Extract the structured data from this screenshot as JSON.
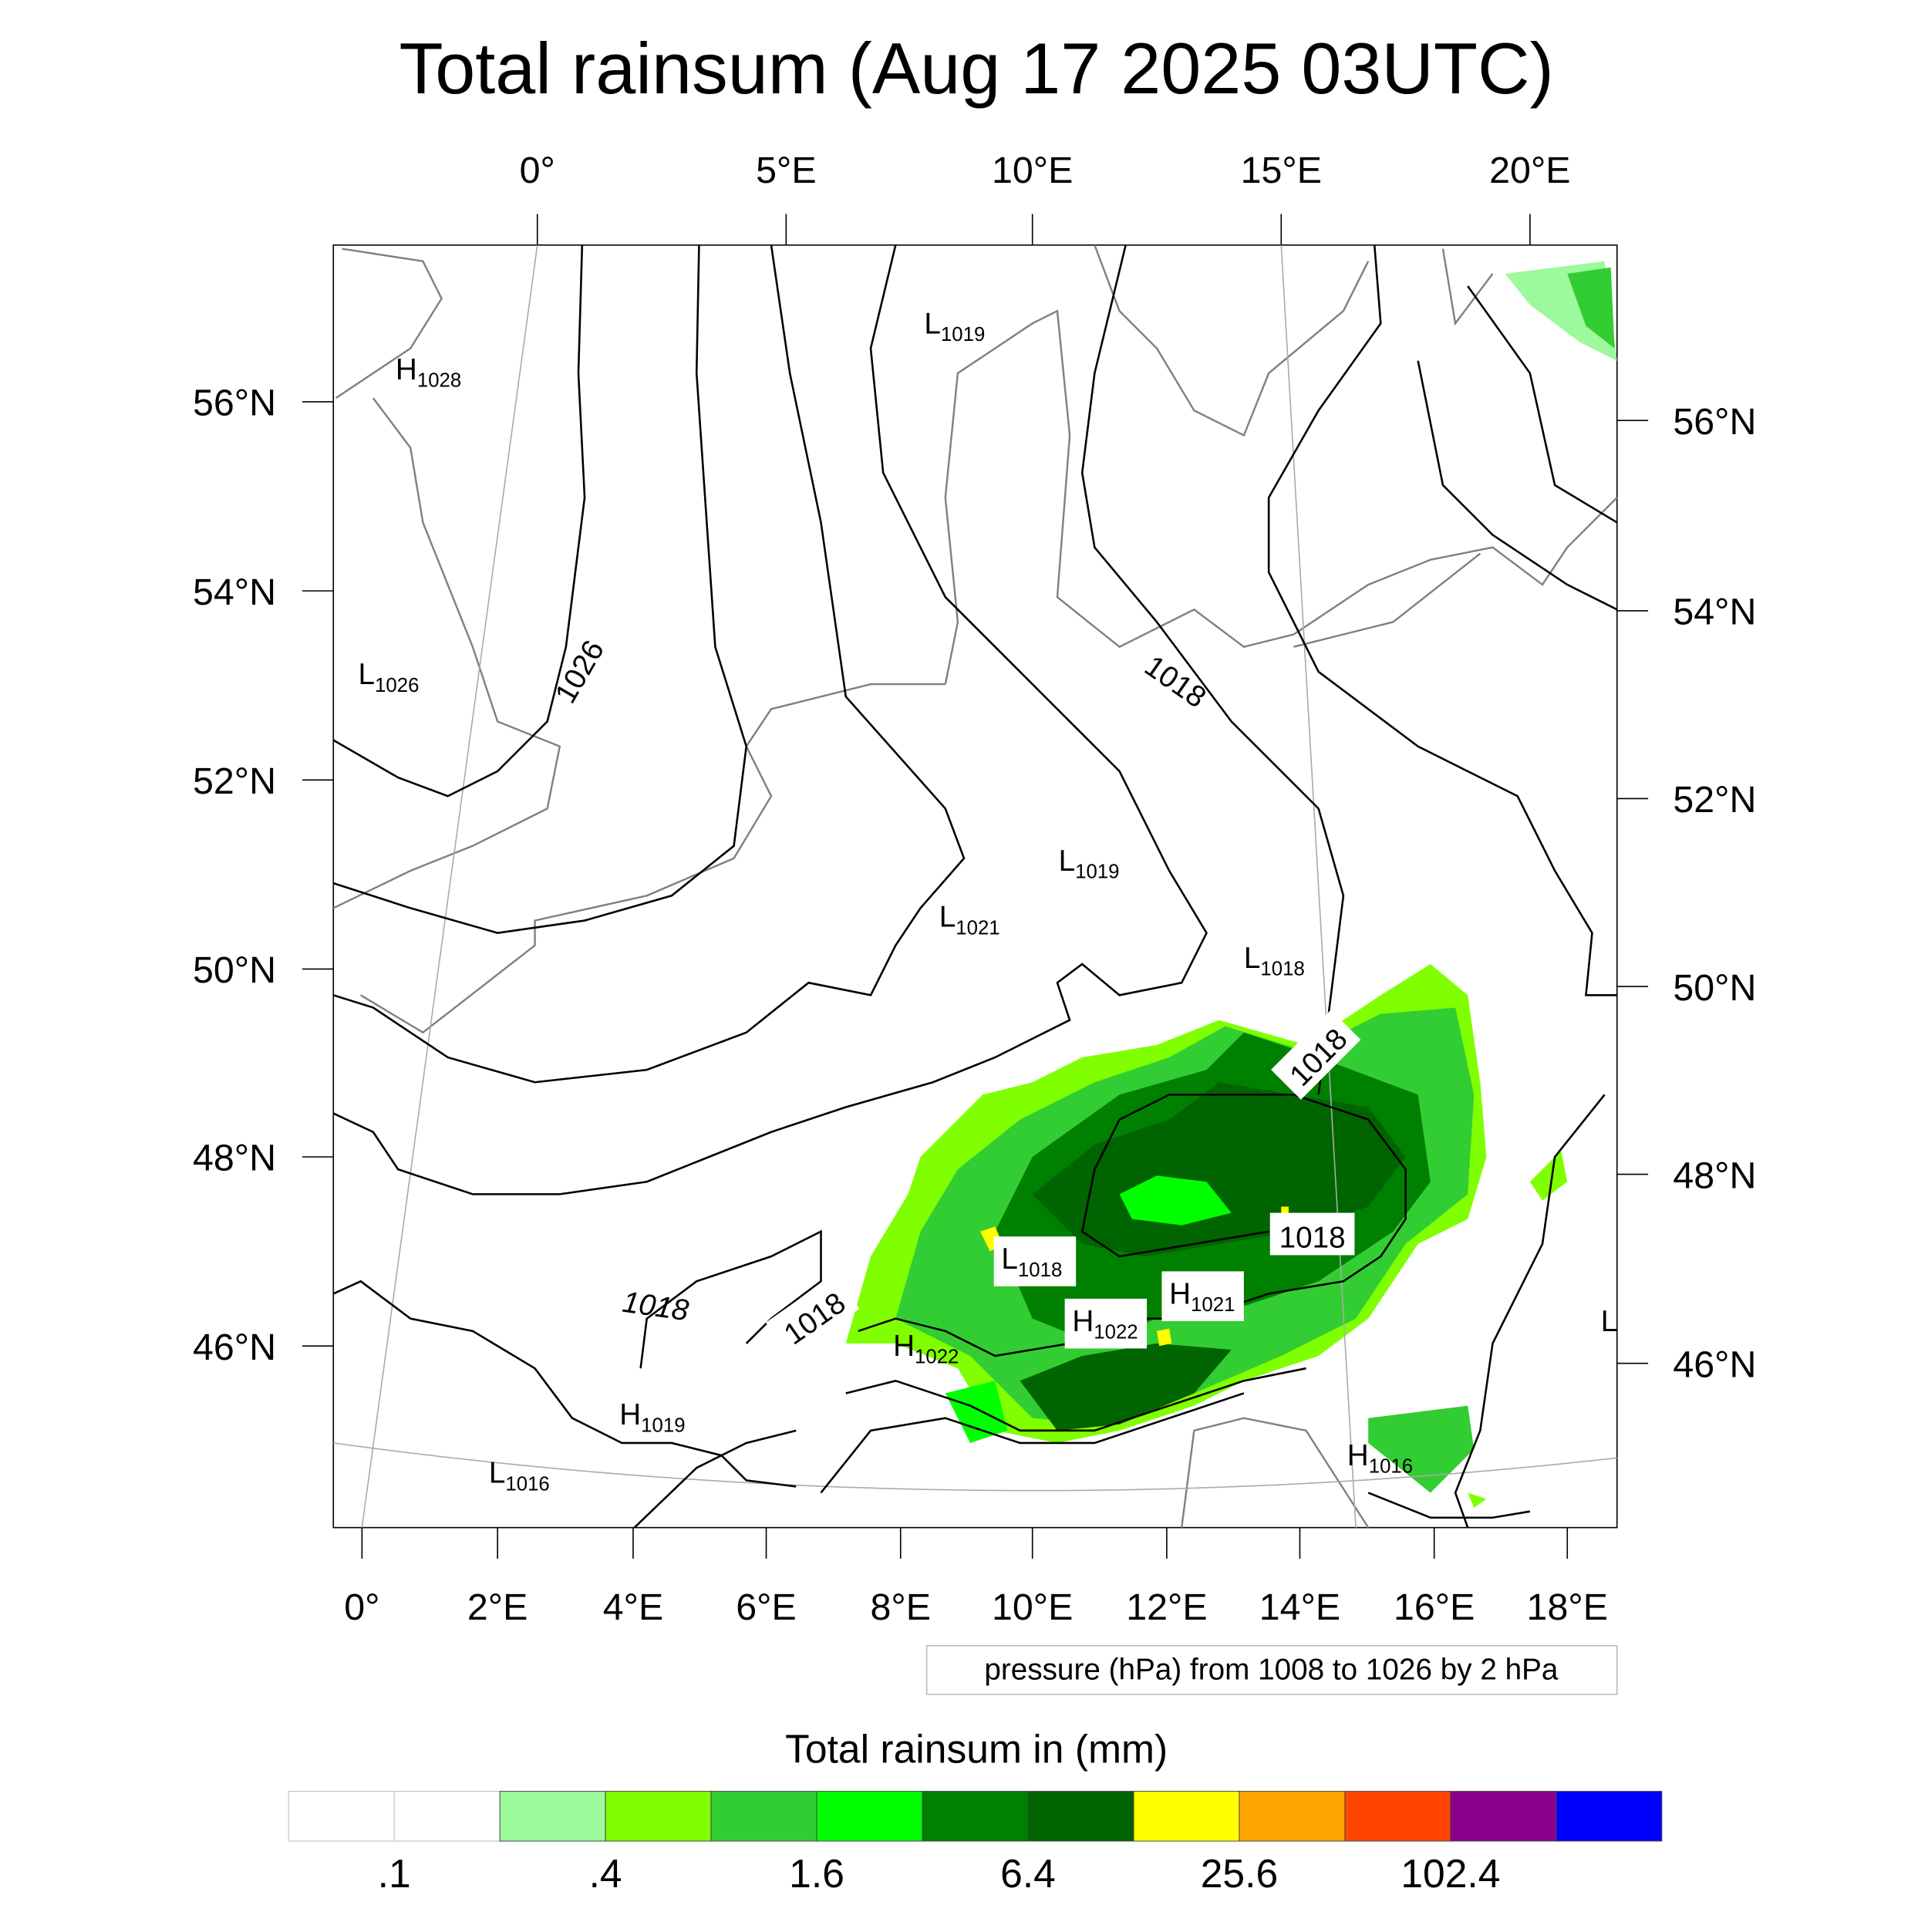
{
  "chart_data": {
    "type": "heatmap",
    "title": "Total rainsum (Aug 17 2025 03UTC)",
    "top_ticks": [
      "0°",
      "5°E",
      "10°E",
      "15°E",
      "20°E"
    ],
    "left_ticks": [
      "56°N",
      "54°N",
      "52°N",
      "50°N",
      "48°N",
      "46°N"
    ],
    "right_ticks": [
      "56°N",
      "54°N",
      "52°N",
      "50°N",
      "48°N",
      "46°N"
    ],
    "bottom_ticks": [
      "0°",
      "2°E",
      "4°E",
      "6°E",
      "8°E",
      "10°E",
      "12°E",
      "14°E",
      "16°E",
      "18°E"
    ],
    "contour_info": "pressure (hPa) from 1008 to 1026 by 2 hPa",
    "pressure_centers": [
      {
        "letter": "H",
        "value": "1028"
      },
      {
        "letter": "L",
        "value": "1026"
      },
      {
        "letter": "L",
        "value": "1019"
      },
      {
        "letter": "L",
        "value": "1019"
      },
      {
        "letter": "L",
        "value": "1021"
      },
      {
        "letter": "L",
        "value": "1018"
      },
      {
        "letter": "L",
        "value": "1018"
      },
      {
        "letter": "H",
        "value": "1021"
      },
      {
        "letter": "H",
        "value": "1022"
      },
      {
        "letter": "H",
        "value": "1022"
      },
      {
        "letter": "H",
        "value": "1019"
      },
      {
        "letter": "L",
        "value": "1016"
      },
      {
        "letter": "H",
        "value": "1016"
      },
      {
        "letter": "L",
        "value": ""
      }
    ],
    "contour_labels": [
      "1026",
      "1018",
      "1018",
      "1018",
      "1018",
      "1018"
    ],
    "colorbar": {
      "title": "Total rainsum in (mm)",
      "colors": [
        "#ffffff",
        "#ffffff",
        "#9cf99c",
        "#80ff00",
        "#32cd32",
        "#00ff00",
        "#008000",
        "#006400",
        "#ffff00",
        "#ffa500",
        "#ff4500",
        "#8b008b",
        "#0000ff"
      ],
      "labels": [
        ".1",
        ".4",
        "1.6",
        "6.4",
        "25.6",
        "102.4"
      ]
    }
  }
}
